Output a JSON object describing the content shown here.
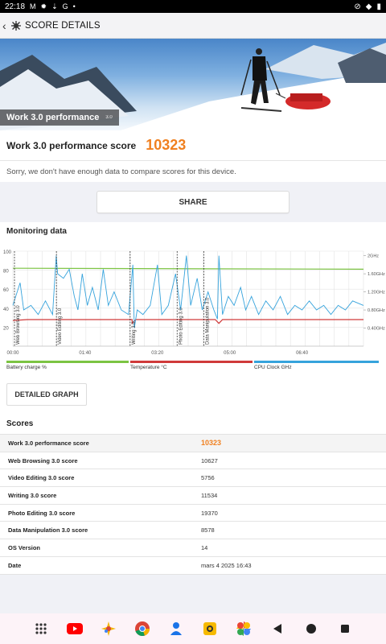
{
  "status_bar": {
    "time": "22:18"
  },
  "app_bar": {
    "title": "SCORE DETAILS"
  },
  "hero": {
    "label": "Work 3.0 performance",
    "version": "3.0"
  },
  "score_card": {
    "label": "Work 3.0 performance score",
    "value": "10323"
  },
  "compare_message": "Sorry, we don't have enough data to compare scores for this device.",
  "share_label": "SHARE",
  "monitoring": {
    "title": "Monitoring data",
    "y_left_ticks": [
      "100",
      "80",
      "60",
      "40",
      "20"
    ],
    "y_right_ticks": [
      "2GHz",
      "1.60GHz",
      "1.20GHz",
      "0.80GHz",
      "0.40GHz"
    ],
    "x_ticks": [
      "00:00",
      "01:40",
      "03:20",
      "05:00",
      "06:40"
    ],
    "markers": [
      "Web Browsing 3.0",
      "Video Editing 3.0",
      "Writing 3.0",
      "Photo Editing 3.0",
      "Data Manipulation 3.0"
    ],
    "legend": [
      {
        "label": "Battery charge %",
        "color": "#7cc443"
      },
      {
        "label": "Temperature °C",
        "color": "#d03a3a"
      },
      {
        "label": "CPU Clock GHz",
        "color": "#36a3dc"
      }
    ],
    "detailed_button": "DETAILED GRAPH"
  },
  "chart_data": {
    "type": "line",
    "x_range_seconds": [
      0,
      485
    ],
    "series": [
      {
        "name": "Battery charge %",
        "axis": "left",
        "points": [
          [
            0,
            82
          ],
          [
            485,
            81
          ]
        ]
      },
      {
        "name": "Temperature °C",
        "axis": "left",
        "points": [
          [
            0,
            27
          ],
          [
            20,
            28
          ],
          [
            100,
            28
          ],
          [
            165,
            28
          ],
          [
            165,
            24
          ],
          [
            170,
            28
          ],
          [
            240,
            28
          ],
          [
            280,
            28
          ],
          [
            285,
            24
          ],
          [
            290,
            28
          ],
          [
            485,
            28
          ]
        ]
      },
      {
        "name": "CPU Clock GHz",
        "axis": "right",
        "points": [
          [
            0,
            0.9
          ],
          [
            10,
            1.4
          ],
          [
            15,
            0.8
          ],
          [
            25,
            0.9
          ],
          [
            35,
            0.7
          ],
          [
            45,
            1.0
          ],
          [
            55,
            0.7
          ],
          [
            60,
            2.0
          ],
          [
            62,
            1.6
          ],
          [
            70,
            1.5
          ],
          [
            78,
            1.7
          ],
          [
            85,
            1.1
          ],
          [
            90,
            0.8
          ],
          [
            96,
            1.6
          ],
          [
            103,
            0.9
          ],
          [
            110,
            1.3
          ],
          [
            118,
            0.8
          ],
          [
            125,
            1.7
          ],
          [
            132,
            0.9
          ],
          [
            140,
            1.2
          ],
          [
            150,
            0.8
          ],
          [
            160,
            0.7
          ],
          [
            166,
            1.8
          ],
          [
            168,
            0.4
          ],
          [
            172,
            0.8
          ],
          [
            180,
            0.7
          ],
          [
            190,
            0.9
          ],
          [
            200,
            1.8
          ],
          [
            206,
            0.7
          ],
          [
            215,
            0.9
          ],
          [
            225,
            1.6
          ],
          [
            232,
            0.8
          ],
          [
            240,
            2.0
          ],
          [
            246,
            0.9
          ],
          [
            255,
            1.5
          ],
          [
            262,
            0.8
          ],
          [
            270,
            1.2
          ],
          [
            278,
            0.8
          ],
          [
            283,
            0.6
          ],
          [
            285,
            2.0
          ],
          [
            290,
            0.7
          ],
          [
            298,
            1.1
          ],
          [
            306,
            0.9
          ],
          [
            315,
            1.3
          ],
          [
            322,
            0.8
          ],
          [
            330,
            1.1
          ],
          [
            340,
            0.7
          ],
          [
            350,
            1.0
          ],
          [
            360,
            0.8
          ],
          [
            370,
            1.1
          ],
          [
            380,
            0.7
          ],
          [
            390,
            0.9
          ],
          [
            400,
            0.8
          ],
          [
            410,
            1.0
          ],
          [
            420,
            0.8
          ],
          [
            430,
            0.9
          ],
          [
            440,
            0.7
          ],
          [
            450,
            0.9
          ],
          [
            460,
            0.8
          ],
          [
            470,
            1.0
          ],
          [
            485,
            0.9
          ]
        ]
      }
    ],
    "markers_x": [
      0,
      58,
      160,
      225,
      262
    ]
  },
  "scores": {
    "title": "Scores",
    "rows": [
      {
        "label": "Work 3.0 performance score",
        "value": "10323"
      },
      {
        "label": "Web Browsing 3.0 score",
        "value": "10627"
      },
      {
        "label": "Video Editing 3.0 score",
        "value": "5756"
      },
      {
        "label": "Writing 3.0 score",
        "value": "11534"
      },
      {
        "label": "Photo Editing 3.0 score",
        "value": "19370"
      },
      {
        "label": "Data Manipulation 3.0 score",
        "value": "8578"
      },
      {
        "label": "OS Version",
        "value": "14"
      },
      {
        "label": "Date",
        "value": "mars 4 2025 16:43"
      }
    ]
  },
  "icons": [
    "launcher-icon",
    "youtube-icon",
    "assistant-icon",
    "chrome-icon",
    "contacts-icon",
    "camera-icon",
    "photos-icon",
    "back-icon",
    "home-icon",
    "recents-icon"
  ],
  "accent_color": "#f08020"
}
